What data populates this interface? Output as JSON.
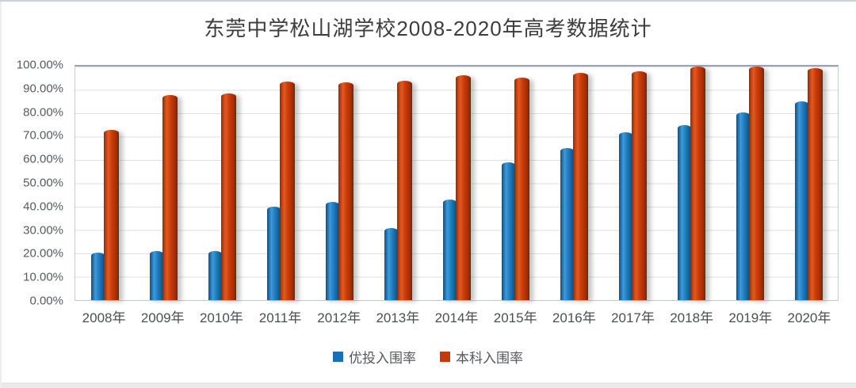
{
  "page": {
    "title": "东莞中学松山湖学校2008-2020年高考数据统计"
  },
  "colors": {
    "series_blue": "#1B6FB5",
    "series_red": "#C23A0E",
    "gridline": "#DCDFE4",
    "axis_text": "#555A60",
    "title_text": "#3D3D3D"
  },
  "y_axis": {
    "ticks": [
      "100.00%",
      "90.00%",
      "80.00%",
      "70.00%",
      "60.00%",
      "50.00%",
      "40.00%",
      "30.00%",
      "20.00%",
      "10.00%",
      "0.00%"
    ],
    "min": 0,
    "max": 100,
    "step": 10
  },
  "legend": {
    "items": [
      {
        "label": "优投入围率",
        "color": "#1B6FB5"
      },
      {
        "label": "本科入围率",
        "color": "#C23A0E"
      }
    ]
  },
  "chart_data": {
    "type": "bar",
    "title": "东莞中学松山湖学校2008-2020年高考数据统计",
    "categories": [
      "2008年",
      "2009年",
      "2010年",
      "2011年",
      "2012年",
      "2013年",
      "2014年",
      "2015年",
      "2016年",
      "2017年",
      "2018年",
      "2019年",
      "2020年"
    ],
    "series": [
      {
        "name": "优投入围率",
        "color": "#1B6FB5",
        "values": [
          20.5,
          21,
          21,
          40,
          42,
          31,
          43,
          59,
          65,
          72,
          75,
          80.5,
          85
        ]
      },
      {
        "name": "本科入围率",
        "color": "#C23A0E",
        "values": [
          73,
          87.7,
          88.4,
          93.5,
          93.1,
          93.9,
          96.2,
          95.2,
          97.3,
          98,
          100,
          100,
          99.4
        ]
      }
    ],
    "xlabel": "",
    "ylabel": "",
    "ylim": [
      0,
      100
    ],
    "ytick_format": "percent_2dp",
    "grid": true,
    "legend_position": "bottom"
  }
}
